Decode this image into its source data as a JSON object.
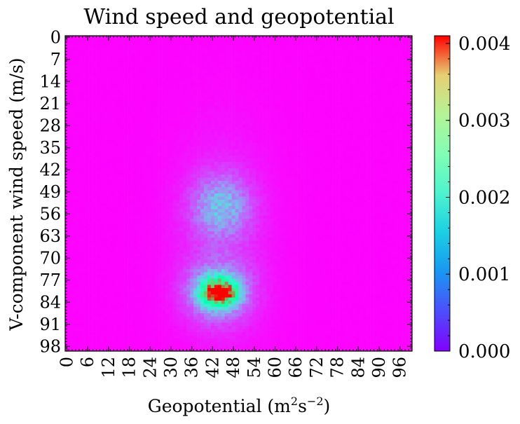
{
  "chart_data": {
    "type": "heatmap",
    "title": "Wind speed and geopotential",
    "xlabel": "Geopotential (m",
    "xlabel_sup1": "2",
    "xlabel_mid": "s",
    "xlabel_sup2": "−2",
    "xlabel_end": ")",
    "ylabel": "V-component wind speed (m/s)",
    "grid": false,
    "x_range": [
      0,
      100
    ],
    "y_range": [
      0,
      100
    ],
    "x_ticks": [
      "0",
      "6",
      "12",
      "18",
      "24",
      "30",
      "36",
      "42",
      "48",
      "54",
      "60",
      "66",
      "72",
      "78",
      "84",
      "90",
      "96"
    ],
    "y_ticks": [
      "0",
      "7",
      "14",
      "21",
      "28",
      "35",
      "42",
      "49",
      "56",
      "63",
      "70",
      "77",
      "84",
      "91",
      "98"
    ],
    "colormap": "rainbow",
    "colorbar": {
      "min": 0.0,
      "max": 0.0041,
      "ticks": [
        "0.000",
        "0.001",
        "0.002",
        "0.003",
        "0.004"
      ],
      "tick_values": [
        0.0,
        0.001,
        0.002,
        0.003,
        0.004
      ]
    },
    "background_value": 2e-05,
    "clusters": [
      {
        "cx": 44.5,
        "cy": 81.5,
        "sx": 3.2,
        "sy": 2.8,
        "peak": 0.0039
      },
      {
        "cx": 44.0,
        "cy": 81.0,
        "sx": 6.0,
        "sy": 6.0,
        "peak": 0.0011
      },
      {
        "cx": 45.0,
        "cy": 54.0,
        "sx": 5.5,
        "sy": 6.5,
        "peak": 0.0009
      },
      {
        "cx": 45.0,
        "cy": 65.0,
        "sx": 9.0,
        "sy": 22.0,
        "peak": 0.00025
      }
    ]
  }
}
